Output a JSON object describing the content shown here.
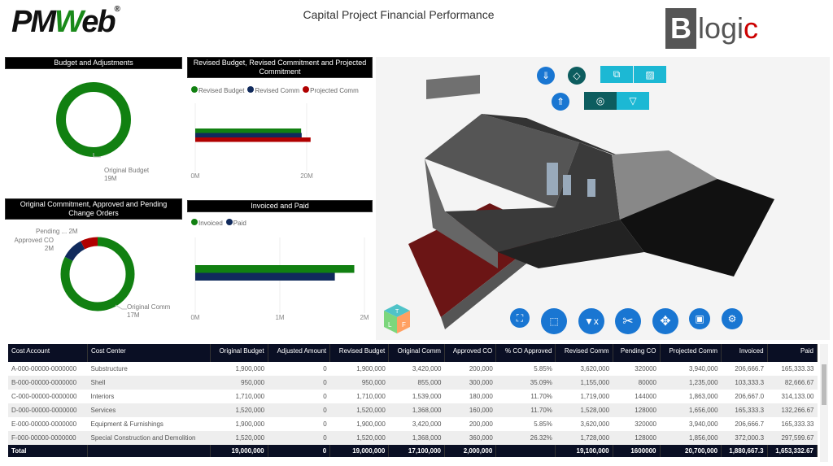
{
  "header": {
    "logo": "PMWeb",
    "title": "Capital Project Financial Performance",
    "partner_logo": "Blogic"
  },
  "panels": {
    "budget": {
      "title": "Budget and Adjustments",
      "label": "Original Budget",
      "value": "19M"
    },
    "revised": {
      "title": "Revised Budget, Revised Commitment and Projected Commitment"
    },
    "commitment": {
      "title": "Original Commitment, Approved and Pending Change Orders",
      "labels": [
        {
          "name": "Original Comm",
          "value": "17M"
        },
        {
          "name": "Approved CO",
          "value": "2M"
        },
        {
          "name": "Pending ...",
          "value": "2M"
        }
      ]
    },
    "invoiced": {
      "title": "Invoiced and Paid"
    }
  },
  "chart_data": [
    {
      "type": "pie",
      "title": "Budget and Adjustments",
      "donut": true,
      "slices": [
        {
          "name": "Original Budget",
          "value": 19
        }
      ],
      "unit": "M",
      "colors": [
        "#118011"
      ]
    },
    {
      "type": "bar",
      "orientation": "horizontal",
      "title": "Revised Budget, Revised Commitment and Projected Commitment",
      "series": [
        {
          "name": "Revised Budget",
          "values": [
            19
          ]
        },
        {
          "name": "Revised Comm",
          "values": [
            19.1
          ]
        },
        {
          "name": "Projected Comm",
          "values": [
            20.7
          ]
        }
      ],
      "colors": [
        "#118011",
        "#102a5c",
        "#b00000"
      ],
      "xlim": [
        0,
        25
      ],
      "ticks": [
        "0M",
        "20M"
      ],
      "tick_values": [
        0,
        20
      ],
      "legend": "top-left"
    },
    {
      "type": "pie",
      "title": "Original Commitment, Approved and Pending Change Orders",
      "donut": true,
      "slices": [
        {
          "name": "Original Comm",
          "value": 17.1
        },
        {
          "name": "Approved CO",
          "value": 2
        },
        {
          "name": "Pending ...",
          "value": 1.6
        }
      ],
      "unit": "M",
      "colors": [
        "#118011",
        "#102a5c",
        "#b00000"
      ]
    },
    {
      "type": "bar",
      "orientation": "horizontal",
      "title": "Invoiced and Paid",
      "series": [
        {
          "name": "Invoiced",
          "values": [
            1.88
          ]
        },
        {
          "name": "Paid",
          "values": [
            1.65
          ]
        }
      ],
      "colors": [
        "#118011",
        "#102a5c"
      ],
      "xlim": [
        0,
        2
      ],
      "ticks": [
        "0M",
        "1M",
        "2M"
      ],
      "tick_values": [
        0,
        1,
        2
      ],
      "legend": "top-left"
    }
  ],
  "viewer": {
    "top_tools": [
      "explode-icon",
      "orbit-icon",
      "copy-section-icon",
      "hatch-icon",
      "reset-icon",
      "target-icon",
      "filter-icon"
    ],
    "bottom_tools": [
      "fit-icon",
      "box-select-icon",
      "clear-filter-icon",
      "cut-icon",
      "model-tree-icon",
      "camera-icon",
      "settings-icon"
    ],
    "cube": [
      "T",
      "L",
      "F"
    ]
  },
  "table": {
    "columns": [
      "Cost Account",
      "Cost Center",
      "Original Budget",
      "Adjusted Amount",
      "Revised Budget",
      "Original Comm",
      "Approved CO",
      "% CO Approved",
      "Revised Comm",
      "Pending CO",
      "Projected Comm",
      "Invoiced",
      "Paid"
    ],
    "rows": [
      [
        "A-000-00000-0000000",
        "Substructure",
        "1,900,000",
        "0",
        "1,900,000",
        "3,420,000",
        "200,000",
        "5.85%",
        "3,620,000",
        "320000",
        "3,940,000",
        "206,666.7",
        "165,333.33"
      ],
      [
        "B-000-00000-0000000",
        "Shell",
        "950,000",
        "0",
        "950,000",
        "855,000",
        "300,000",
        "35.09%",
        "1,155,000",
        "80000",
        "1,235,000",
        "103,333.3",
        "82,666.67"
      ],
      [
        "C-000-00000-0000000",
        "Interiors",
        "1,710,000",
        "0",
        "1,710,000",
        "1,539,000",
        "180,000",
        "11.70%",
        "1,719,000",
        "144000",
        "1,863,000",
        "206,667.0",
        "314,133.00"
      ],
      [
        "D-000-00000-0000000",
        "Services",
        "1,520,000",
        "0",
        "1,520,000",
        "1,368,000",
        "160,000",
        "11.70%",
        "1,528,000",
        "128000",
        "1,656,000",
        "165,333.3",
        "132,266.67"
      ],
      [
        "E-000-00000-0000000",
        "Equipment & Furnishings",
        "1,900,000",
        "0",
        "1,900,000",
        "3,420,000",
        "200,000",
        "5.85%",
        "3,620,000",
        "320000",
        "3,940,000",
        "206,666.7",
        "165,333.33"
      ],
      [
        "F-000-00000-0000000",
        "Special Construction and Demolition",
        "1,520,000",
        "0",
        "1,520,000",
        "1,368,000",
        "360,000",
        "26.32%",
        "1,728,000",
        "128000",
        "1,856,000",
        "372,000.3",
        "297,599.67"
      ]
    ],
    "total": [
      "Total",
      "",
      "19,000,000",
      "0",
      "19,000,000",
      "17,100,000",
      "2,000,000",
      "",
      "19,100,000",
      "1600000",
      "20,700,000",
      "1,880,667.3",
      "1,653,332.67"
    ]
  }
}
